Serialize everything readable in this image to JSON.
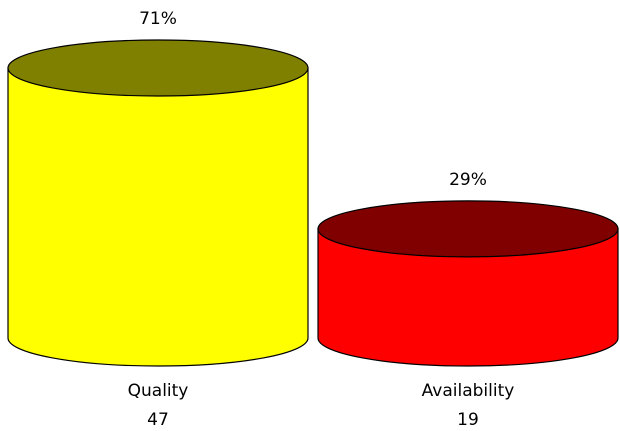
{
  "chart_data": {
    "type": "bar",
    "style": "3d-cylinder",
    "categories": [
      "Quality",
      "Availability"
    ],
    "values": [
      47,
      19
    ],
    "percent_labels": [
      "71%",
      "29%"
    ],
    "series": [
      {
        "category": "Quality",
        "value": 47,
        "percent": "71%",
        "body_color": "#FFFF00",
        "top_color": "#808000"
      },
      {
        "category": "Availability",
        "value": 19,
        "percent": "29%",
        "body_color": "#FF0000",
        "top_color": "#800000"
      }
    ],
    "grid": false,
    "legend": "none"
  }
}
